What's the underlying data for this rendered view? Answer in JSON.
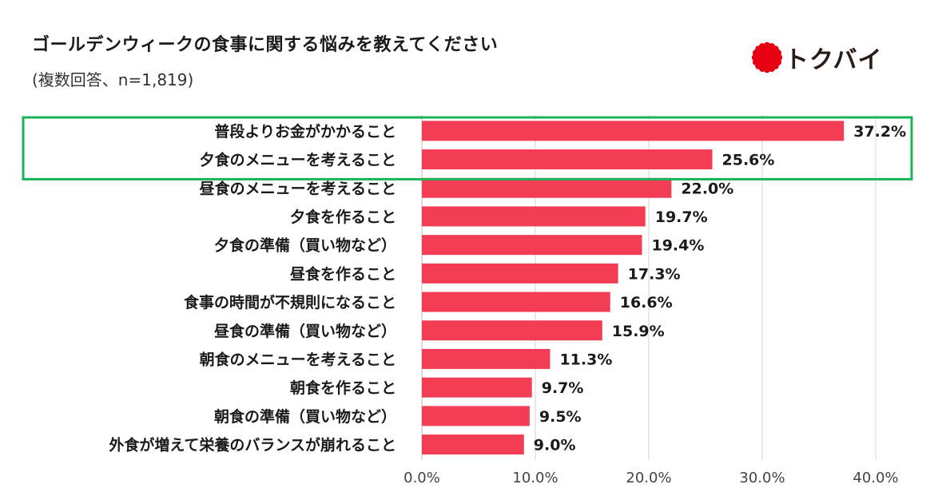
{
  "header": {
    "title": "ゴールデンウィークの食事に関する悩みを教えてください",
    "subtitle": "(複数回答、n=1,819)"
  },
  "logo": {
    "text": "トクバイ",
    "mark_color": "#e60012",
    "icon": "sun-burst-icon"
  },
  "highlight": {
    "color": "#1ab35a",
    "categories": [
      "普段よりお金がかかること",
      "夕食のメニューを考えること"
    ]
  },
  "chart_data": {
    "type": "bar",
    "orientation": "horizontal",
    "title": "ゴールデンウィークの食事に関する悩みを教えてください",
    "categories": [
      "普段よりお金がかかること",
      "夕食のメニューを考えること",
      "昼食のメニューを考えること",
      "夕食を作ること",
      "夕食の準備（買い物など）",
      "昼食を作ること",
      "食事の時間が不規則になること",
      "昼食の準備（買い物など）",
      "朝食のメニューを考えること",
      "朝食を作ること",
      "朝食の準備（買い物など）",
      "外食が増えて栄養のバランスが崩れること"
    ],
    "values": [
      37.2,
      25.6,
      22.0,
      19.7,
      19.4,
      17.3,
      16.6,
      15.9,
      11.3,
      9.7,
      9.5,
      9.0
    ],
    "value_labels": [
      "37.2%",
      "25.6%",
      "22.0%",
      "19.7%",
      "19.4%",
      "17.3%",
      "16.6%",
      "15.9%",
      "11.3%",
      "9.7%",
      "9.5%",
      "9.0%"
    ],
    "xlim": [
      0,
      40
    ],
    "xticks": [
      0,
      10,
      20,
      30,
      40
    ],
    "xtick_labels": [
      "0.0%",
      "10.0%",
      "20.0%",
      "30.0%",
      "40.0%"
    ],
    "bar_color": "#f23d55",
    "grid": true
  }
}
